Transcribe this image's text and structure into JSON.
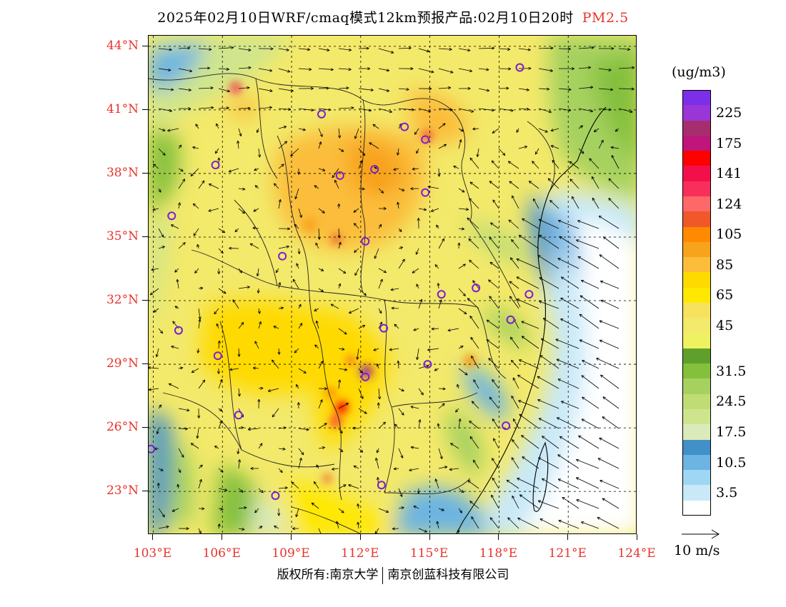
{
  "title": {
    "main": "2025年02月10日WRF/cmaq模式12km预报产品:02月10日20时",
    "pollutant": "PM2.5"
  },
  "lat_labels": [
    "44°N",
    "41°N",
    "38°N",
    "35°N",
    "32°N",
    "29°N",
    "26°N",
    "23°N"
  ],
  "lon_labels": [
    "103°E",
    "106°E",
    "109°E",
    "112°E",
    "115°E",
    "118°E",
    "121°E",
    "124°E"
  ],
  "legend": {
    "unit": "(ug/m3)",
    "levels": [
      {
        "label": "",
        "color": "#7c2fe8"
      },
      {
        "label": "225",
        "color": "#9a35d8"
      },
      {
        "label": "",
        "color": "#a72e6e"
      },
      {
        "label": "175",
        "color": "#c0157a"
      },
      {
        "label": "",
        "color": "#ff0000"
      },
      {
        "label": "141",
        "color": "#f3104a"
      },
      {
        "label": "",
        "color": "#f82f5a"
      },
      {
        "label": "124",
        "color": "#ff6868"
      },
      {
        "label": "",
        "color": "#f0582a"
      },
      {
        "label": "105",
        "color": "#ff8a00"
      },
      {
        "label": "",
        "color": "#f7a31c"
      },
      {
        "label": "85",
        "color": "#fbbd3b"
      },
      {
        "label": "",
        "color": "#ffda00"
      },
      {
        "label": "65",
        "color": "#ffe800"
      },
      {
        "label": "",
        "color": "#f7e25e"
      },
      {
        "label": "45",
        "color": "#f3e96a"
      },
      {
        "label": "",
        "color": "#eef260"
      },
      {
        "label": "",
        "color": "#5fa02d"
      },
      {
        "label": "31.5",
        "color": "#84c03c"
      },
      {
        "label": "",
        "color": "#a6d15f"
      },
      {
        "label": "24.5",
        "color": "#bfdd74"
      },
      {
        "label": "",
        "color": "#cfe58d"
      },
      {
        "label": "17.5",
        "color": "#dbeabb"
      },
      {
        "label": "",
        "color": "#4290c8"
      },
      {
        "label": "10.5",
        "color": "#6cb4e2"
      },
      {
        "label": "",
        "color": "#9fd6f3"
      },
      {
        "label": "3.5",
        "color": "#c9e9f8"
      },
      {
        "label": "",
        "color": "#ffffff"
      }
    ]
  },
  "wind_reference": {
    "label": "10 m/s"
  },
  "footer": {
    "left": "版权所有:南京大学",
    "right": "南京创蓝科技有限公司"
  },
  "cities": [
    {
      "lon": 118.9,
      "lat": 43.0
    },
    {
      "lon": 110.3,
      "lat": 40.8
    },
    {
      "lon": 113.9,
      "lat": 40.2
    },
    {
      "lon": 114.8,
      "lat": 39.6
    },
    {
      "lon": 105.7,
      "lat": 38.4
    },
    {
      "lon": 111.1,
      "lat": 37.9
    },
    {
      "lon": 112.6,
      "lat": 38.2
    },
    {
      "lon": 114.8,
      "lat": 37.1
    },
    {
      "lon": 103.8,
      "lat": 36.0
    },
    {
      "lon": 108.6,
      "lat": 34.1
    },
    {
      "lon": 112.2,
      "lat": 34.8
    },
    {
      "lon": 117.0,
      "lat": 32.6
    },
    {
      "lon": 115.5,
      "lat": 32.3
    },
    {
      "lon": 119.3,
      "lat": 32.3
    },
    {
      "lon": 118.5,
      "lat": 31.1
    },
    {
      "lon": 104.1,
      "lat": 30.6
    },
    {
      "lon": 113.0,
      "lat": 30.7
    },
    {
      "lon": 105.8,
      "lat": 29.4
    },
    {
      "lon": 114.9,
      "lat": 29.0
    },
    {
      "lon": 112.2,
      "lat": 28.4
    },
    {
      "lon": 106.7,
      "lat": 26.6
    },
    {
      "lon": 118.3,
      "lat": 26.1
    },
    {
      "lon": 102.9,
      "lat": 25.0
    },
    {
      "lon": 108.3,
      "lat": 22.8
    },
    {
      "lon": 112.9,
      "lat": 23.3
    }
  ]
}
